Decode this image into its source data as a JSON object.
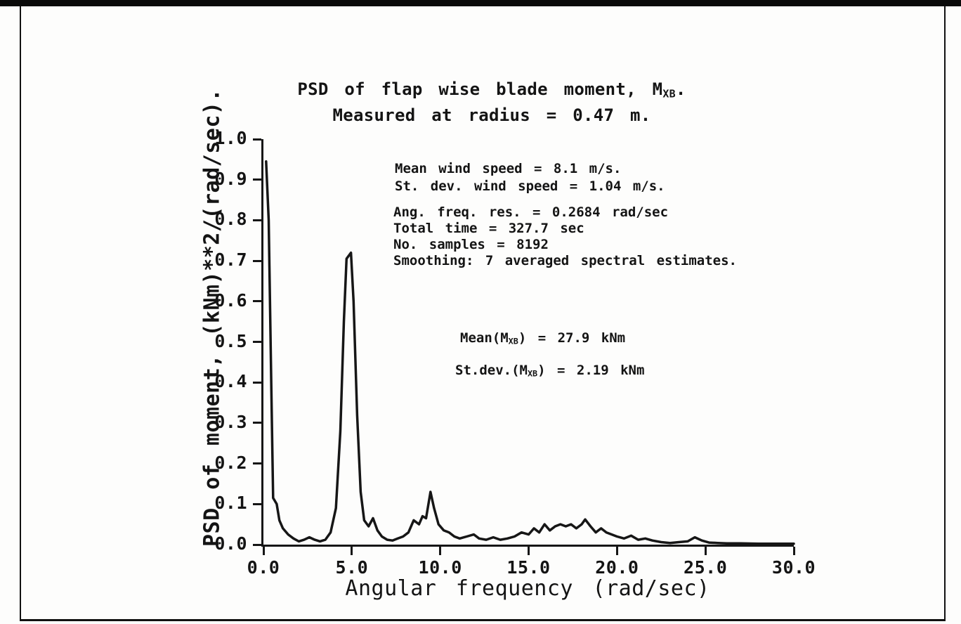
{
  "title": {
    "line1_pre": "PSD of flap wise blade moment, M",
    "line1_sub": "XB",
    "line1_post": ".",
    "line2": "Measured at radius = 0.47 m."
  },
  "axes": {
    "x_title": "Angular frequency (rad/sec)",
    "y_title": "PSD of moment, (kNm)**2/(rad/sec)."
  },
  "annotations": {
    "wind_line1": "Mean wind speed = 8.1 m/s.",
    "wind_line2": "St. dev. wind speed = 1.04 m/s.",
    "stats_line1": "Ang. freq. res. = 0.2684 rad/sec",
    "stats_line2": "Total time = 327.7 sec",
    "stats_line3": "No. samples = 8192",
    "stats_line4": "Smoothing: 7 averaged spectral estimates.",
    "mean_pre": "Mean(M",
    "mean_sub": "XB",
    "mean_post": ") = 27.9 kNm",
    "stdev_pre": "St.dev.(M",
    "stdev_sub": "XB",
    "stdev_post": ") = 2.19 kNm"
  },
  "chart_data": {
    "type": "line",
    "title": "PSD of flap wise blade moment, M_XB. Measured at radius = 0.47 m.",
    "xlabel": "Angular frequency (rad/sec)",
    "ylabel": "PSD of moment, (kNm)**2/(rad/sec).",
    "xlim": [
      0,
      30
    ],
    "ylim": [
      0,
      1
    ],
    "xticks": [
      0,
      5,
      10,
      15,
      20,
      25,
      30
    ],
    "xtick_labels": [
      "0.0",
      "5.0",
      "10.0",
      "15.0",
      "20.0",
      "25.0",
      "30.0"
    ],
    "yticks": [
      0,
      0.1,
      0.2,
      0.3,
      0.4,
      0.5,
      0.6,
      0.7,
      0.8,
      0.9,
      1.0
    ],
    "ytick_labels": [
      "0.0",
      "0.1",
      "0.2",
      "0.3",
      "0.4",
      "0.5",
      "0.6",
      "0.7",
      "0.8",
      "0.9",
      "1.0"
    ],
    "grid": false,
    "legend": "none",
    "line_color": "#161616",
    "annotations": [
      "Mean wind speed = 8.1 m/s.",
      "St. dev. wind speed = 1.04 m/s.",
      "Ang. freq. res. = 0.2684 rad/sec",
      "Total time = 327.7 sec",
      "No. samples = 8192",
      "Smoothing: 7 averaged spectral estimates.",
      "Mean(M_XB) = 27.9 kNm",
      "St.dev.(M_XB) = 2.19 kNm"
    ],
    "series": [
      {
        "name": "PSD of flap-wise blade moment M_XB",
        "x": [
          0.15,
          0.3,
          0.45,
          0.55,
          0.75,
          0.9,
          1.1,
          1.4,
          1.7,
          2.0,
          2.3,
          2.6,
          2.9,
          3.2,
          3.5,
          3.8,
          4.1,
          4.35,
          4.55,
          4.7,
          4.95,
          5.1,
          5.3,
          5.5,
          5.7,
          5.95,
          6.2,
          6.45,
          6.7,
          7.0,
          7.3,
          7.6,
          7.9,
          8.2,
          8.5,
          8.8,
          9.0,
          9.2,
          9.45,
          9.65,
          9.9,
          10.2,
          10.5,
          10.8,
          11.1,
          11.5,
          11.9,
          12.2,
          12.6,
          13.0,
          13.4,
          13.8,
          14.2,
          14.6,
          15.0,
          15.3,
          15.6,
          15.9,
          16.2,
          16.5,
          16.8,
          17.1,
          17.4,
          17.7,
          18.0,
          18.2,
          18.5,
          18.8,
          19.1,
          19.4,
          19.7,
          20.0,
          20.4,
          20.8,
          21.2,
          21.6,
          22.0,
          22.5,
          23.0,
          23.5,
          24.0,
          24.4,
          24.8,
          25.2,
          25.7,
          26.2,
          27.0,
          28.0,
          29.0,
          30.0
        ],
        "y": [
          0.945,
          0.8,
          0.38,
          0.115,
          0.1,
          0.06,
          0.04,
          0.025,
          0.015,
          0.008,
          0.012,
          0.018,
          0.012,
          0.008,
          0.012,
          0.03,
          0.09,
          0.28,
          0.55,
          0.705,
          0.72,
          0.6,
          0.32,
          0.13,
          0.06,
          0.045,
          0.065,
          0.035,
          0.02,
          0.012,
          0.01,
          0.015,
          0.02,
          0.03,
          0.06,
          0.05,
          0.07,
          0.065,
          0.13,
          0.09,
          0.05,
          0.035,
          0.03,
          0.02,
          0.015,
          0.02,
          0.025,
          0.015,
          0.012,
          0.018,
          0.012,
          0.015,
          0.02,
          0.03,
          0.025,
          0.04,
          0.03,
          0.05,
          0.035,
          0.045,
          0.05,
          0.045,
          0.05,
          0.04,
          0.05,
          0.062,
          0.045,
          0.03,
          0.04,
          0.03,
          0.025,
          0.02,
          0.015,
          0.022,
          0.012,
          0.015,
          0.01,
          0.006,
          0.004,
          0.006,
          0.008,
          0.018,
          0.01,
          0.005,
          0.004,
          0.003,
          0.003,
          0.002,
          0.002,
          0.002
        ]
      }
    ]
  }
}
